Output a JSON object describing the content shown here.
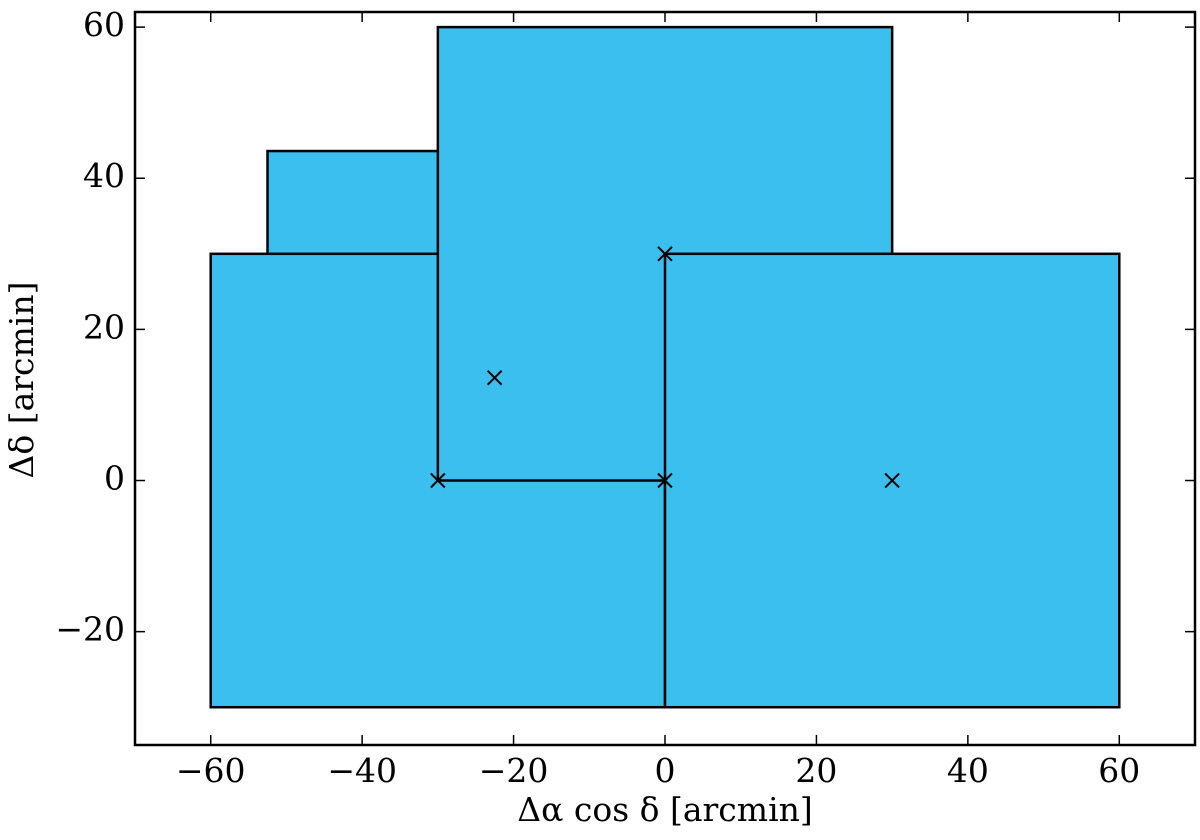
{
  "chart_data": {
    "type": "rectangles",
    "xlabel": "Δα  cos δ [arcmin]",
    "ylabel": "Δδ [arcmin]",
    "color": "#3bbfee",
    "edge_color": "#000000",
    "marker_color": "#000000",
    "rectangles": [
      {
        "x": [
          -52.5,
          -22.5
        ],
        "y": [
          13.6,
          43.6
        ]
      },
      {
        "x": [
          -60,
          0
        ],
        "y": [
          -30,
          30
        ]
      },
      {
        "x": [
          -30,
          30
        ],
        "y": [
          0,
          60
        ]
      },
      {
        "x": [
          0,
          60
        ],
        "y": [
          -30,
          30
        ]
      }
    ],
    "points": {
      "x": [
        -30,
        0,
        0,
        30,
        -22.5
      ],
      "y": [
        0,
        0,
        30,
        0,
        13.6
      ]
    },
    "xlim": [
      -70,
      70
    ],
    "ylim": [
      -35,
      62
    ],
    "xticks": [
      {
        "value": -60,
        "label": "−60"
      },
      {
        "value": -40,
        "label": "−40"
      },
      {
        "value": -20,
        "label": "−20"
      },
      0,
      20,
      40,
      60
    ],
    "yticks": [
      {
        "value": -20,
        "label": "−20"
      },
      0,
      20,
      40,
      60
    ]
  }
}
